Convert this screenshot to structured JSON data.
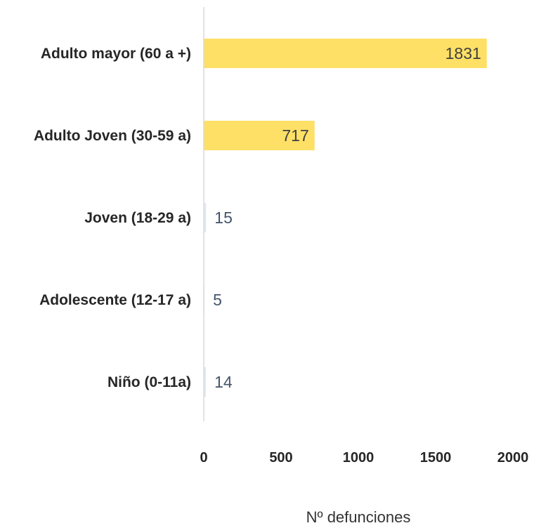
{
  "chart_data": {
    "type": "bar",
    "orientation": "horizontal",
    "categories": [
      "Adulto mayor (60 a +)",
      "Adulto Joven (30-59 a)",
      "Joven (18-29 a)",
      "Adolescente (12-17 a)",
      "Niño (0-11a)"
    ],
    "values": [
      1831,
      717,
      15,
      5,
      14
    ],
    "xlabel": "Nº defunciones",
    "ylabel": "",
    "xlim": [
      0,
      2000
    ],
    "xticks": [
      "0",
      "500",
      "1000",
      "1500",
      "2000"
    ],
    "grid": false,
    "legend": "none",
    "colors": {
      "bar": "#FFE066",
      "axis_line": "#D9D9D9",
      "label_inside": "#404040",
      "label_outside": "#44546A"
    }
  }
}
